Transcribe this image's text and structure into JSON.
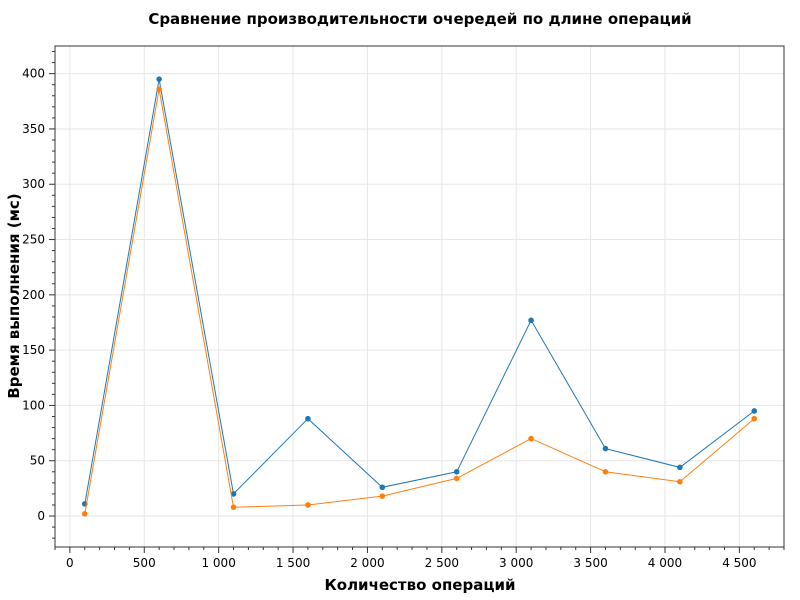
{
  "chart_data": {
    "type": "line",
    "title": "Сравнение производительности очередей по длине операций",
    "xlabel": "Количество операций",
    "ylabel": "Время выполнения (мс)",
    "xlim": [
      -100,
      4800
    ],
    "ylim": [
      -28,
      425
    ],
    "x_ticks": [
      0,
      500,
      1000,
      1500,
      2000,
      2500,
      3000,
      3500,
      4000,
      4500
    ],
    "x_tick_labels": [
      "0",
      "500",
      "1 000",
      "1 500",
      "2 000",
      "2 500",
      "3 000",
      "3 500",
      "4 000",
      "4 500"
    ],
    "y_ticks": [
      0,
      50,
      100,
      150,
      200,
      250,
      300,
      350,
      400
    ],
    "y_tick_labels": [
      "0",
      "50",
      "100",
      "150",
      "200",
      "250",
      "300",
      "350",
      "400"
    ],
    "grid": true,
    "x": [
      100,
      600,
      1100,
      1600,
      2100,
      2600,
      3100,
      3600,
      4100,
      4600
    ],
    "series": [
      {
        "color": "#1f77b4",
        "values": [
          11,
          395,
          20,
          88,
          26,
          40,
          177,
          61,
          44,
          95
        ]
      },
      {
        "color": "#ff7f0e",
        "values": [
          2,
          386,
          8,
          10,
          18,
          34,
          70,
          40,
          31,
          88
        ]
      }
    ]
  }
}
